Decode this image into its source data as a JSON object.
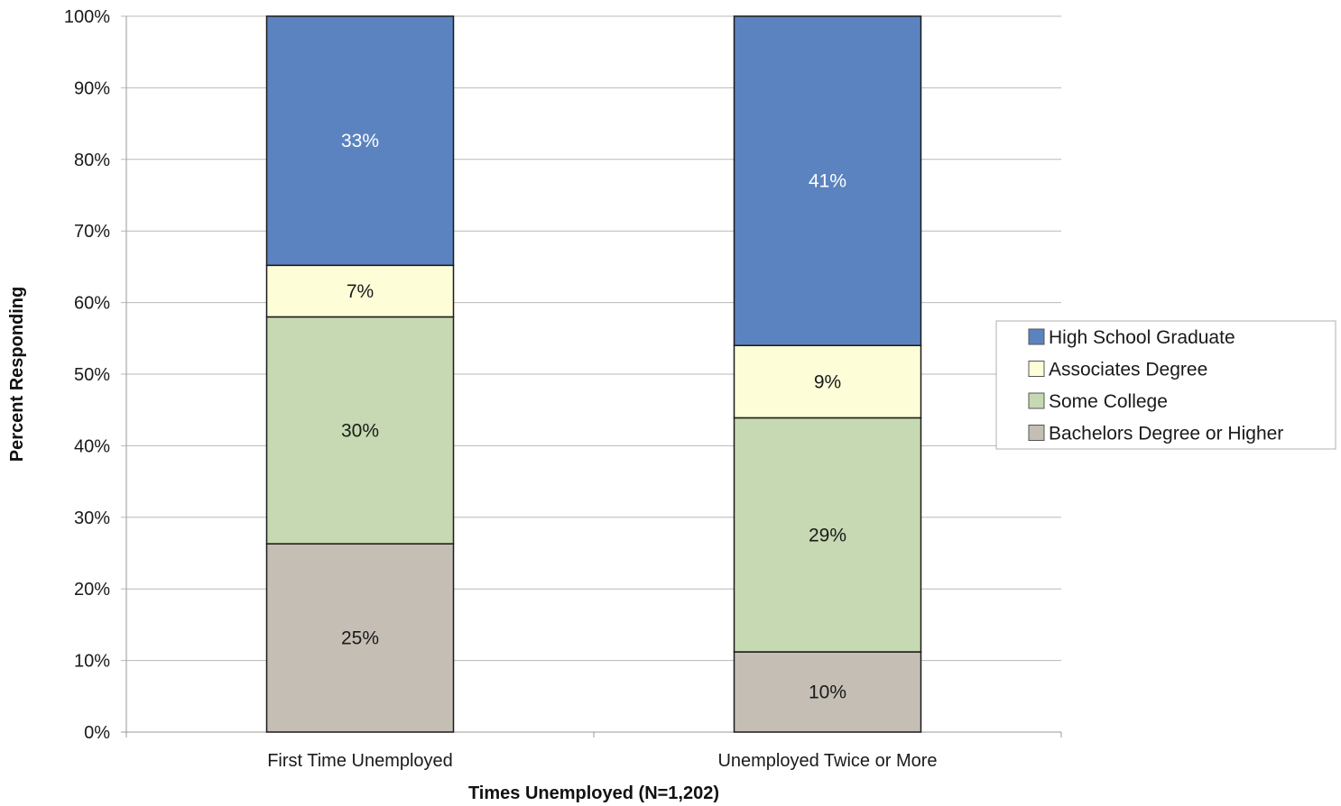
{
  "chart_data": {
    "type": "bar",
    "stacked": true,
    "percent_stacked": true,
    "categories": [
      "First Time Unemployed",
      "Unemployed Twice or More"
    ],
    "series": [
      {
        "name": "Bachelors Degree or Higher",
        "values": [
          26.3,
          11.2
        ],
        "labels": [
          "25%",
          "10%"
        ],
        "color": "#c4beb5",
        "label_color": "#1a1a1a"
      },
      {
        "name": "Some College",
        "values": [
          31.7,
          32.7
        ],
        "labels": [
          "30%",
          "29%"
        ],
        "color": "#c6d9b2",
        "label_color": "#1a1a1a"
      },
      {
        "name": "Associates Degree",
        "values": [
          7.2,
          10.1
        ],
        "labels": [
          "7%",
          "9%"
        ],
        "color": "#fdfdd8",
        "label_color": "#1a1a1a"
      },
      {
        "name": "High School Graduate",
        "values": [
          34.8,
          46.0
        ],
        "labels": [
          "33%",
          "41%"
        ],
        "color": "#5b83bf",
        "label_color": "#ffffff"
      }
    ],
    "legend_order": [
      "High School Graduate",
      "Associates Degree",
      "Some College",
      "Bachelors Degree or Higher"
    ],
    "xlabel": "Times Unemployed (N=1,202)",
    "ylabel": "Percent Responding",
    "ylim": [
      0,
      100
    ],
    "yticks": [
      "0%",
      "10%",
      "20%",
      "30%",
      "40%",
      "50%",
      "60%",
      "70%",
      "80%",
      "90%",
      "100%"
    ],
    "grid": true,
    "legend_position": "right"
  }
}
